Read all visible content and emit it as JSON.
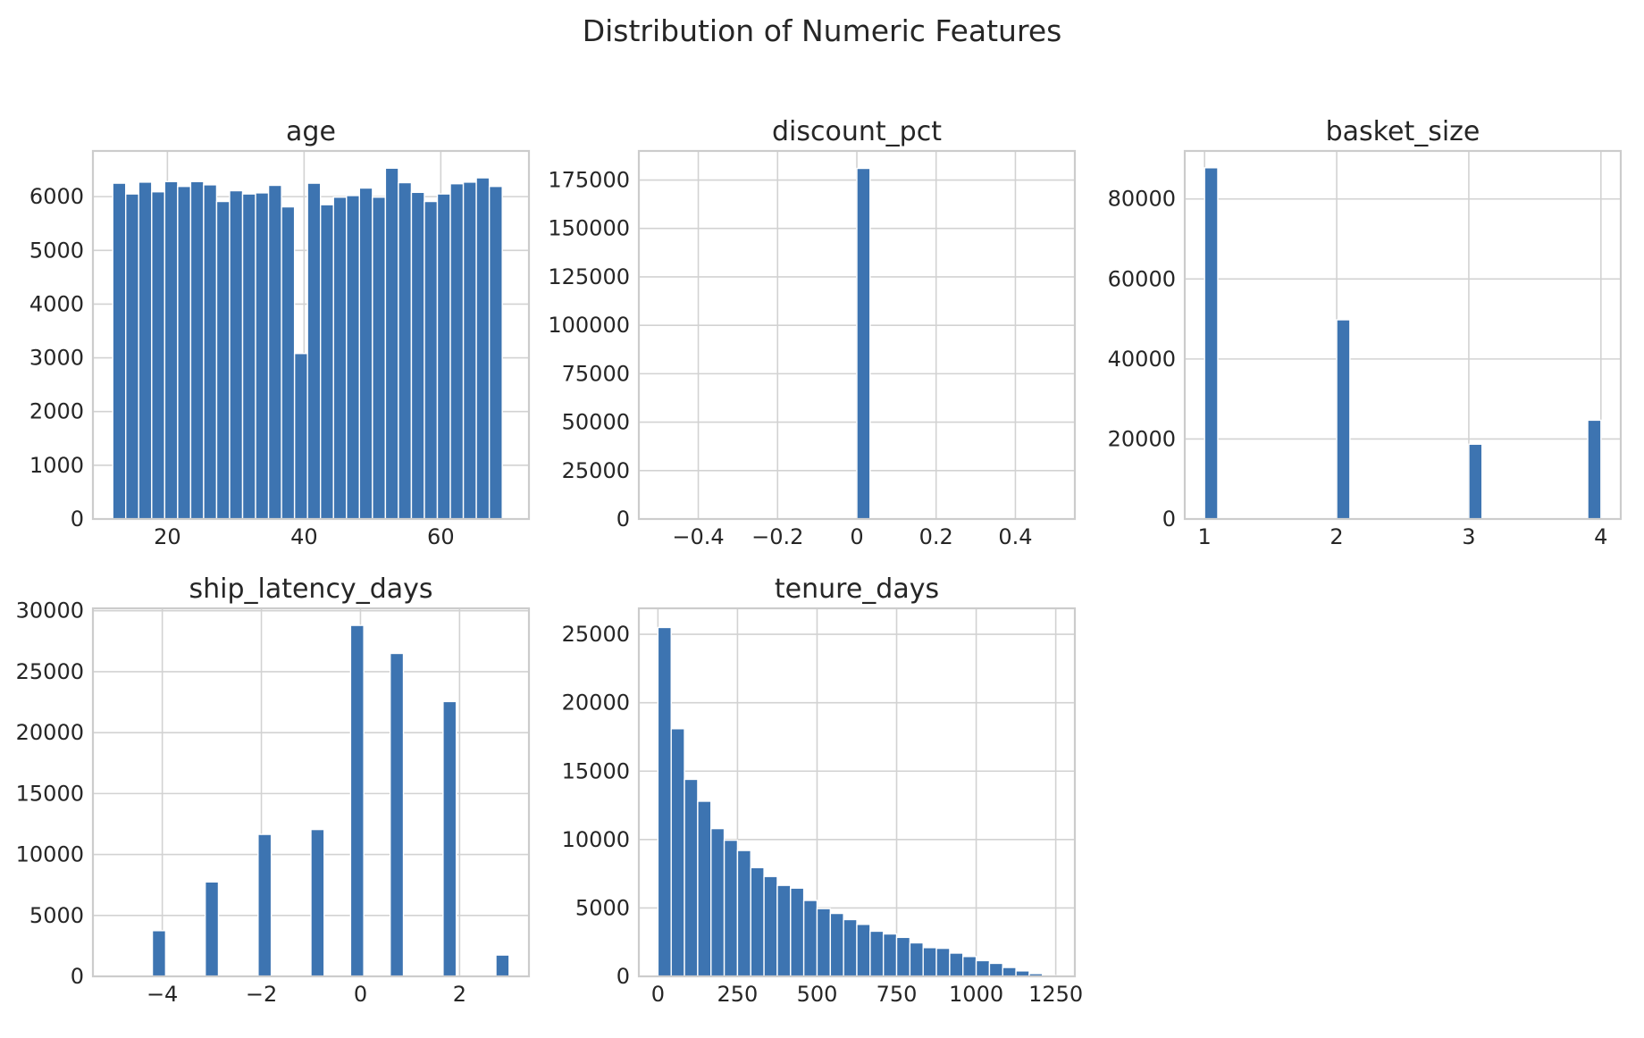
{
  "figure": {
    "title": "Distribution of Numeric Features",
    "colors": {
      "bar": "#3d74b1",
      "grid": "#d2d2d2",
      "frame": "#cccccc",
      "text": "#262626"
    }
  },
  "chart_data": [
    {
      "type": "bar",
      "title": "age",
      "xlabel": "",
      "ylabel": "",
      "grid": true,
      "xlim": [
        9.1,
        72.9
      ],
      "ylim": [
        0,
        6850
      ],
      "xticks": [
        20,
        40,
        60
      ],
      "yticks": [
        0,
        1000,
        2000,
        3000,
        4000,
        5000,
        6000,
        7000
      ],
      "bin_edges": [
        12.0,
        13.9,
        15.8,
        17.7,
        19.6,
        21.5,
        23.4,
        25.3,
        27.2,
        29.1,
        31.0,
        32.9,
        34.8,
        36.7,
        38.6,
        40.5,
        42.4,
        44.3,
        46.2,
        48.1,
        50.0,
        51.9,
        53.8,
        55.7,
        57.6,
        59.5,
        61.4,
        63.3,
        65.2,
        67.1,
        69.0
      ],
      "values": [
        6250,
        6050,
        6270,
        6090,
        6280,
        6190,
        6280,
        6220,
        5910,
        6110,
        6050,
        6070,
        6210,
        5810,
        3080,
        6250,
        5850,
        5990,
        6020,
        6160,
        5990,
        6530,
        6260,
        6080,
        5910,
        6050,
        6240,
        6270,
        6350,
        6190
      ]
    },
    {
      "type": "bar",
      "title": "discount_pct",
      "xlabel": "",
      "ylabel": "",
      "grid": true,
      "xlim": [
        -0.55,
        0.55
      ],
      "ylim": [
        0,
        190000
      ],
      "xticks": [
        -0.4,
        -0.2,
        0.0,
        0.2,
        0.4
      ],
      "yticks": [
        0,
        25000,
        50000,
        75000,
        100000,
        125000,
        150000,
        175000
      ],
      "bin_edges": [
        -0.5,
        -0.4667,
        -0.4333,
        -0.4,
        -0.3667,
        -0.3333,
        -0.3,
        -0.2667,
        -0.2333,
        -0.2,
        -0.1667,
        -0.1333,
        -0.1,
        -0.0667,
        -0.0333,
        0.0,
        0.0333,
        0.0667,
        0.1,
        0.1333,
        0.1667,
        0.2,
        0.2333,
        0.2667,
        0.3,
        0.3333,
        0.3667,
        0.4,
        0.4333,
        0.4667,
        0.5
      ],
      "values": [
        0,
        0,
        0,
        0,
        0,
        0,
        0,
        0,
        0,
        0,
        0,
        0,
        0,
        0,
        0,
        181000,
        0,
        0,
        0,
        0,
        0,
        0,
        0,
        0,
        0,
        0,
        0,
        0,
        0,
        0
      ]
    },
    {
      "type": "bar",
      "title": "basket_size",
      "xlabel": "",
      "ylabel": "",
      "grid": true,
      "xlim": [
        0.85,
        4.15
      ],
      "ylim": [
        0,
        92000
      ],
      "xticks": [
        1,
        2,
        3,
        4
      ],
      "yticks": [
        0,
        20000,
        40000,
        60000,
        80000
      ],
      "bin_edges": [
        1.0,
        1.1,
        1.2,
        1.3,
        1.4,
        1.5,
        1.6,
        1.7,
        1.8,
        1.9,
        2.0,
        2.1,
        2.2,
        2.3,
        2.4,
        2.5,
        2.6,
        2.7,
        2.8,
        2.9,
        3.0,
        3.1,
        3.2,
        3.3,
        3.4,
        3.5,
        3.6,
        3.7,
        3.8,
        3.9,
        4.0
      ],
      "values": [
        87800,
        0,
        0,
        0,
        0,
        0,
        0,
        0,
        0,
        0,
        49800,
        0,
        0,
        0,
        0,
        0,
        0,
        0,
        0,
        0,
        18700,
        0,
        0,
        0,
        0,
        0,
        0,
        0,
        0,
        24700
      ]
    },
    {
      "type": "bar",
      "title": "ship_latency_days",
      "xlabel": "",
      "ylabel": "",
      "grid": true,
      "xlim": [
        -5.4,
        3.4
      ],
      "ylim": [
        0,
        30200
      ],
      "xticks": [
        -4,
        -2,
        0,
        2
      ],
      "yticks": [
        0,
        5000,
        10000,
        15000,
        20000,
        25000,
        30000
      ],
      "bin_edges": [
        -5.0,
        -4.7333,
        -4.4667,
        -4.2,
        -3.9333,
        -3.6667,
        -3.4,
        -3.1333,
        -2.8667,
        -2.6,
        -2.3333,
        -2.0667,
        -1.8,
        -1.5333,
        -1.2667,
        -1.0,
        -0.7333,
        -0.4667,
        -0.2,
        0.0667,
        0.3333,
        0.6,
        0.8667,
        1.1333,
        1.4,
        1.6667,
        1.9333,
        2.2,
        2.4667,
        2.7333,
        3.0
      ],
      "values": [
        0,
        0,
        0,
        3750,
        0,
        0,
        0,
        7750,
        0,
        0,
        0,
        11650,
        0,
        0,
        0,
        12050,
        0,
        0,
        28800,
        0,
        0,
        26500,
        0,
        0,
        0,
        22550,
        0,
        0,
        0,
        1750
      ]
    },
    {
      "type": "bar",
      "title": "tenure_days",
      "xlabel": "",
      "ylabel": "",
      "grid": true,
      "xlim": [
        -60,
        1310
      ],
      "ylim": [
        0,
        26900
      ],
      "xticks": [
        0,
        250,
        500,
        750,
        1000,
        1250
      ],
      "yticks": [
        0,
        5000,
        10000,
        15000,
        20000,
        25000
      ],
      "bin_edges": [
        0,
        41.7,
        83.3,
        125.0,
        166.7,
        208.3,
        250.0,
        291.7,
        333.3,
        375.0,
        416.7,
        458.3,
        500.0,
        541.7,
        583.3,
        625.0,
        666.7,
        708.3,
        750.0,
        791.7,
        833.3,
        875.0,
        916.7,
        958.3,
        1000.0,
        1041.7,
        1083.3,
        1125.0,
        1166.7,
        1208.3,
        1250.0
      ],
      "values": [
        25500,
        18100,
        14400,
        12800,
        10800,
        9950,
        9200,
        7950,
        7300,
        6650,
        6450,
        5550,
        4950,
        4600,
        4150,
        3800,
        3300,
        3100,
        2850,
        2450,
        2100,
        2050,
        1700,
        1450,
        1150,
        950,
        650,
        400,
        200,
        60
      ]
    }
  ]
}
